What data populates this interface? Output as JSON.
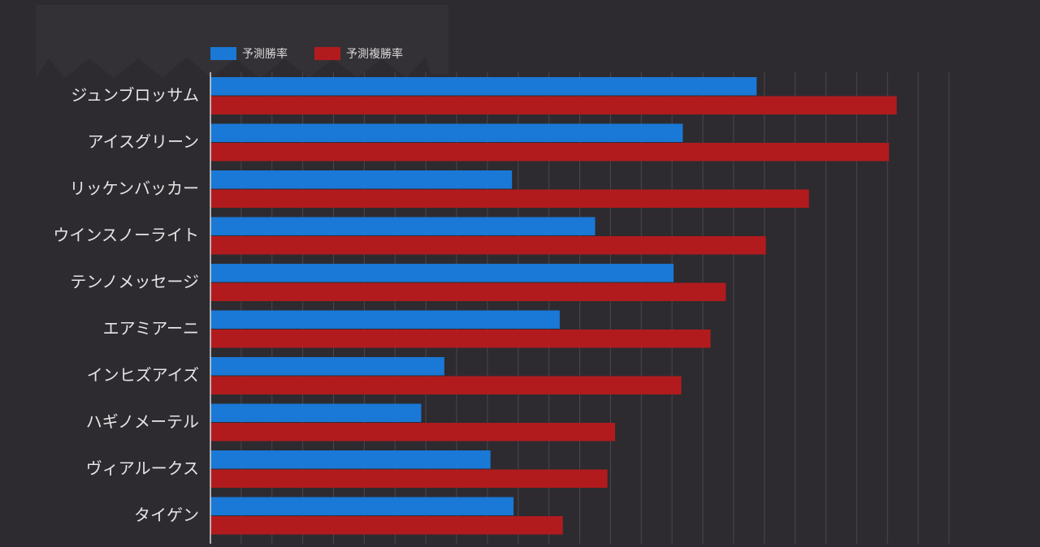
{
  "chart_data": {
    "type": "bar",
    "orientation": "horizontal",
    "categories": [
      "ジュンブロッサム",
      "アイスグリーン",
      "リッケンバッカー",
      "ウインスノーライト",
      "テンノメッセージ",
      "エアミアーニ",
      "インヒズアイズ",
      "ハギノメーテル",
      "ヴィアルークス",
      "タイゲン"
    ],
    "series": [
      {
        "name": "予測勝率",
        "color": "#1a78d6",
        "values": [
          17.75,
          15.35,
          9.8,
          12.5,
          15.05,
          11.35,
          7.6,
          6.85,
          9.1,
          9.85
        ]
      },
      {
        "name": "予測複勝率",
        "color": "#b21b1d",
        "values": [
          22.3,
          22.05,
          19.45,
          18.05,
          16.75,
          16.25,
          15.3,
          13.15,
          12.9,
          11.45
        ]
      }
    ],
    "xlim": [
      0,
      24
    ],
    "grid": true,
    "legend_position": "top-left",
    "title": "",
    "xlabel": "",
    "ylabel": ""
  }
}
